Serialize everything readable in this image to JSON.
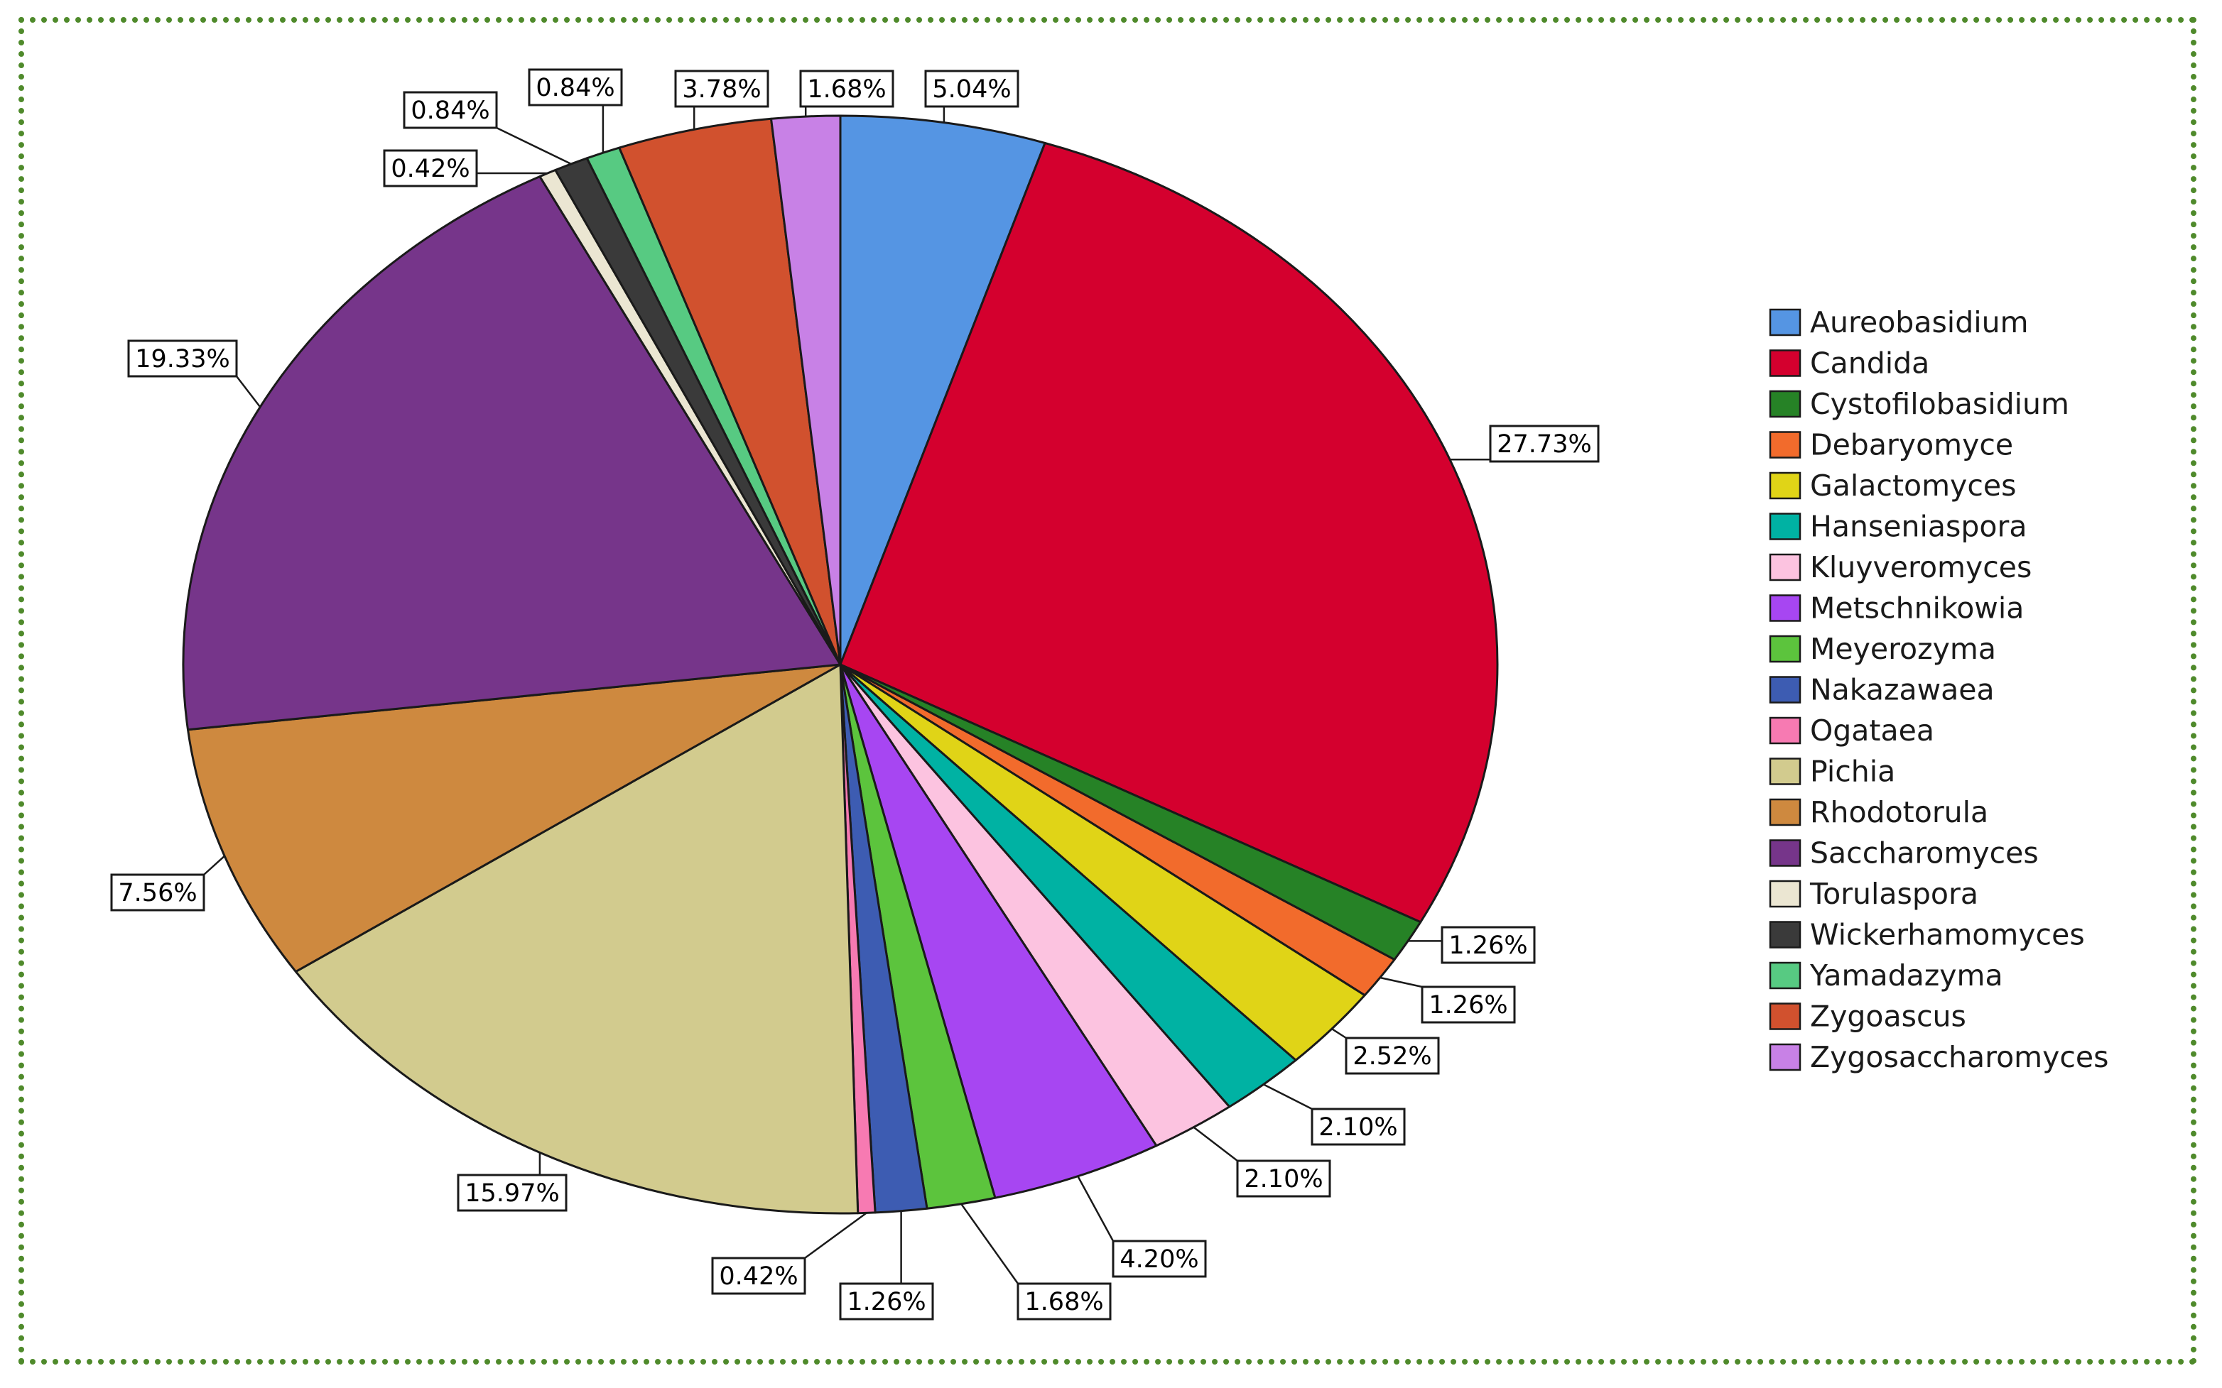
{
  "chart_data": {
    "type": "pie",
    "categories": [
      "Aureobasidium",
      "Candida",
      "Cystofilobasidium",
      "Debaryomyce",
      "Galactomyces",
      "Hanseniaspora",
      "Kluyveromyces",
      "Metschnikowia",
      "Meyerozyma",
      "Nakazawaea",
      "Ogataea",
      "Pichia",
      "Rhodotorula",
      "Saccharomyces",
      "Torulaspora",
      "Wickerhamomyces",
      "Yamadazyma",
      "Zygoascus",
      "Zygosaccharomyces"
    ],
    "values": [
      5.04,
      27.73,
      1.26,
      1.26,
      2.52,
      2.1,
      2.1,
      4.2,
      1.68,
      1.26,
      0.42,
      15.97,
      7.56,
      19.33,
      0.42,
      0.84,
      0.84,
      3.78,
      1.68
    ],
    "labels": [
      "5.04%",
      "27.73%",
      "1.26%",
      "1.26%",
      "2.52%",
      "2.10%",
      "2.10%",
      "4.20%",
      "1.68%",
      "1.26%",
      "0.42%",
      "15.97%",
      "7.56%",
      "19.33%",
      "0.42%",
      "0.84%",
      "0.84%",
      "3.78%",
      "1.68%"
    ],
    "colors": [
      "#5595e3",
      "#d4002e",
      "#268226",
      "#f26b2c",
      "#e0d417",
      "#00b2a3",
      "#fcc3e0",
      "#a746f2",
      "#5cc43d",
      "#3d5cb2",
      "#f77ab2",
      "#d2cb8e",
      "#ce893f",
      "#76358a",
      "#ebe6d2",
      "#3a3a3a",
      "#57ca82",
      "#d1512e",
      "#c881e6"
    ],
    "legend": "right",
    "start_angle": "top",
    "direction": "clockwise"
  }
}
